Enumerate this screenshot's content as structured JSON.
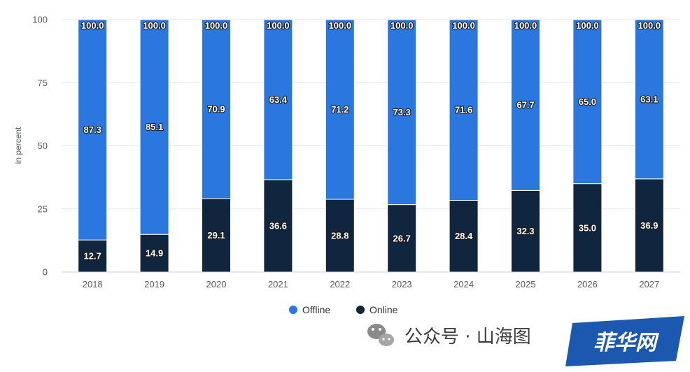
{
  "chart_data": {
    "type": "bar",
    "stacked": true,
    "categories": [
      "2018",
      "2019",
      "2020",
      "2021",
      "2022",
      "2023",
      "2024",
      "2025",
      "2026",
      "2027"
    ],
    "series": [
      {
        "name": "Online",
        "color": "#10263f",
        "values": [
          12.7,
          14.9,
          29.1,
          36.6,
          28.8,
          26.7,
          28.4,
          32.3,
          35.0,
          36.9
        ]
      },
      {
        "name": "Offline",
        "color": "#2a77e0",
        "values": [
          87.3,
          85.1,
          70.9,
          63.4,
          71.2,
          73.3,
          71.6,
          67.7,
          65.0,
          63.1
        ]
      }
    ],
    "totals": [
      100.0,
      100.0,
      100.0,
      100.0,
      100.0,
      100.0,
      100.0,
      100.0,
      100.0,
      100.0
    ],
    "ylabel": "in percent",
    "ylim": [
      0,
      100
    ],
    "yticks": [
      0,
      25,
      50,
      75,
      100
    ],
    "grid": true,
    "legend": {
      "position": "bottom-center",
      "order": [
        "Offline",
        "Online"
      ]
    }
  },
  "watermark": {
    "text": "公众号 · 山海图",
    "icon": "wechat-icon",
    "badge_text": "菲华网",
    "badge_color": "#1c58b0"
  }
}
